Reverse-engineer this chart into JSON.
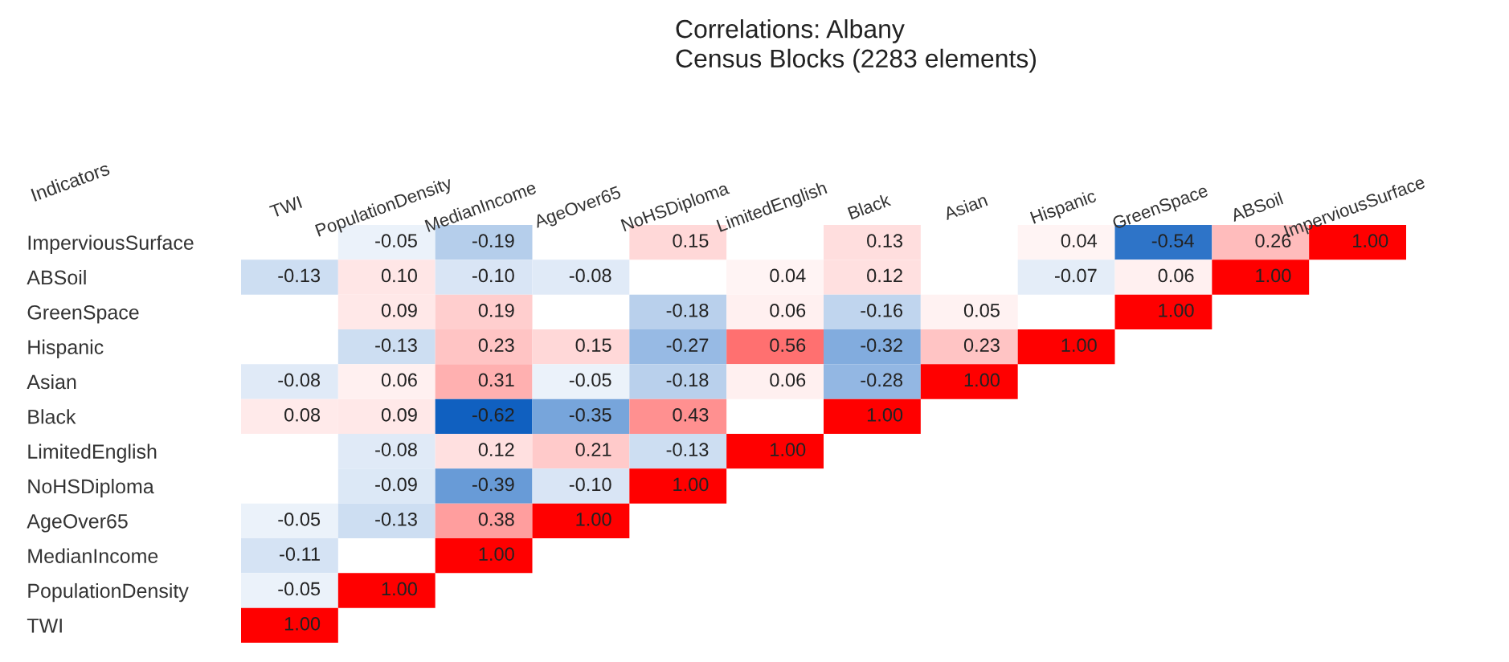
{
  "chart_data": {
    "type": "heatmap",
    "title": "Correlations: Albany\nCensus Blocks (2283 elements)",
    "ylabel": "Indicators",
    "categories": [
      "TWI",
      "PopulationDensity",
      "MedianIncome",
      "AgeOver65",
      "NoHSDiploma",
      "LimitedEnglish",
      "Black",
      "Asian",
      "Hispanic",
      "GreenSpace",
      "ABSoil",
      "ImperviousSurface"
    ],
    "y_categories": [
      "ImperviousSurface",
      "ABSoil",
      "GreenSpace",
      "Hispanic",
      "Asian",
      "Black",
      "LimitedEnglish",
      "NoHSDiploma",
      "AgeOver65",
      "MedianIncome",
      "PopulationDensity",
      "TWI"
    ],
    "cells": [
      [
        null,
        -0.05,
        -0.19,
        null,
        0.15,
        null,
        0.13,
        null,
        0.04,
        -0.54,
        0.26,
        1.0
      ],
      [
        -0.13,
        0.1,
        -0.1,
        -0.08,
        null,
        0.04,
        0.12,
        null,
        -0.07,
        0.06,
        1.0,
        null
      ],
      [
        null,
        0.09,
        0.19,
        null,
        -0.18,
        0.06,
        -0.16,
        0.05,
        null,
        1.0,
        null,
        null
      ],
      [
        null,
        -0.13,
        0.23,
        0.15,
        -0.27,
        0.56,
        -0.32,
        0.23,
        1.0,
        null,
        null,
        null
      ],
      [
        -0.08,
        0.06,
        0.31,
        -0.05,
        -0.18,
        0.06,
        -0.28,
        1.0,
        null,
        null,
        null,
        null
      ],
      [
        0.08,
        0.09,
        -0.62,
        -0.35,
        0.43,
        null,
        1.0,
        null,
        null,
        null,
        null,
        null
      ],
      [
        null,
        -0.08,
        0.12,
        0.21,
        -0.13,
        1.0,
        null,
        null,
        null,
        null,
        null,
        null
      ],
      [
        null,
        -0.09,
        -0.39,
        -0.1,
        1.0,
        null,
        null,
        null,
        null,
        null,
        null,
        null
      ],
      [
        -0.05,
        -0.13,
        0.38,
        1.0,
        null,
        null,
        null,
        null,
        null,
        null,
        null,
        null
      ],
      [
        -0.11,
        null,
        1.0,
        null,
        null,
        null,
        null,
        null,
        null,
        null,
        null,
        null
      ],
      [
        -0.05,
        1.0,
        null,
        null,
        null,
        null,
        null,
        null,
        null,
        null,
        null,
        null
      ],
      [
        1.0,
        null,
        null,
        null,
        null,
        null,
        null,
        null,
        null,
        null,
        null,
        null
      ]
    ],
    "data_labels": true,
    "cell_labels": [
      [
        null,
        "-0.05",
        "-0.19",
        null,
        "0.15",
        null,
        "0.13",
        null,
        "0.04",
        "-0.54",
        "0.26",
        "1.00"
      ],
      [
        "-0.13",
        "0.10",
        "-0.10",
        "-0.08",
        null,
        "0.04",
        "0.12",
        null,
        "-0.07",
        "0.06",
        "1.00",
        null
      ],
      [
        null,
        "0.09",
        "0.19",
        null,
        "-0.18",
        "0.06",
        "-0.16",
        "0.05",
        null,
        "1.00",
        null,
        null
      ],
      [
        null,
        "-0.13",
        "0.23",
        "0.15",
        "-0.27",
        "0.56",
        "-0.32",
        "0.23",
        "1.00",
        null,
        null,
        null
      ],
      [
        "-0.08",
        "0.06",
        "0.31",
        "-0.05",
        "-0.18",
        "0.06",
        "-0.28",
        "1.00",
        null,
        null,
        null,
        null
      ],
      [
        "0.08",
        "0.09",
        "-0.62",
        "-0.35",
        "0.43",
        null,
        "1.00",
        null,
        null,
        null,
        null,
        null
      ],
      [
        null,
        "-0.08",
        "0.12",
        "0.21",
        "-0.13",
        "1.00",
        null,
        null,
        null,
        null,
        null,
        null
      ],
      [
        null,
        "-0.09",
        "-0.39",
        "-0.10",
        "1.00",
        null,
        null,
        null,
        null,
        null,
        null,
        null
      ],
      [
        "-0.05",
        "-0.13",
        "0.38",
        "1.00",
        null,
        null,
        null,
        null,
        null,
        null,
        null,
        null
      ],
      [
        "-0.11",
        null,
        "1.00",
        null,
        null,
        null,
        null,
        null,
        null,
        null,
        null,
        null
      ],
      [
        "-0.05",
        "1.00",
        null,
        null,
        null,
        null,
        null,
        null,
        null,
        null,
        null,
        null
      ],
      [
        "1.00",
        null,
        null,
        null,
        null,
        null,
        null,
        null,
        null,
        null,
        null,
        null
      ]
    ]
  }
}
